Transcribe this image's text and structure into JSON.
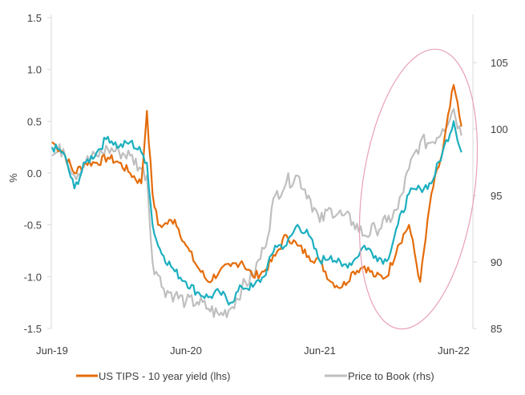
{
  "chart_data": {
    "type": "line",
    "title": "",
    "ylabel": "%",
    "ylim": [
      -1.5,
      1.5
    ],
    "y2lim": [
      85,
      108
    ],
    "yticks": [
      "1.5",
      "1.0",
      "0.5",
      "0.0",
      "-0.5",
      "-1.0",
      "-1.5"
    ],
    "y2ticks": [
      "105",
      "100",
      "95",
      "90",
      "85"
    ],
    "xticks": [
      "Jun-19",
      "Jun-20",
      "Jun-21",
      "Jun-22"
    ],
    "x_unit": "months since Jun-19",
    "x": [
      0,
      1,
      2,
      3,
      4,
      5,
      6,
      7,
      8,
      8.5,
      9,
      9.5,
      10,
      11,
      12,
      13,
      14,
      15,
      16,
      17,
      18,
      19,
      20,
      21,
      22,
      23,
      24,
      25,
      26,
      27,
      28,
      29,
      30,
      31,
      32,
      33,
      34,
      35,
      36,
      36.7
    ],
    "series": [
      {
        "name": "US TIPS - 10 year yield (lhs)",
        "axis": "left",
        "color": "#E46C0A",
        "values": [
          0.3,
          0.2,
          0.0,
          0.1,
          0.1,
          0.15,
          0.1,
          0.0,
          -0.1,
          0.6,
          -0.2,
          -0.5,
          -0.5,
          -0.45,
          -0.7,
          -0.9,
          -1.05,
          -0.95,
          -0.9,
          -0.85,
          -1.0,
          -0.95,
          -0.8,
          -0.6,
          -0.7,
          -0.8,
          -0.85,
          -1.05,
          -1.1,
          -0.95,
          -0.9,
          -1.0,
          -1.0,
          -0.7,
          -0.5,
          -1.05,
          -0.2,
          0.2,
          0.85,
          0.45
        ]
      },
      {
        "name": "",
        "axis": "left",
        "color": "#1BAFBF",
        "values": [
          0.25,
          0.2,
          -0.15,
          0.1,
          0.2,
          0.35,
          0.25,
          0.3,
          0.2,
          0.1,
          -0.5,
          -0.7,
          -0.8,
          -0.95,
          -1.05,
          -1.15,
          -1.2,
          -1.15,
          -1.25,
          -1.1,
          -1.1,
          -1.0,
          -0.7,
          -0.7,
          -0.5,
          -0.6,
          -0.85,
          -0.8,
          -0.9,
          -0.85,
          -0.7,
          -0.8,
          -0.85,
          -0.5,
          -0.2,
          -0.15,
          -0.1,
          0.2,
          0.5,
          0.2
        ]
      },
      {
        "name": "Price to Book (rhs)",
        "axis": "right",
        "color": "#BFBFBF",
        "values": [
          98,
          98.5,
          96.5,
          97.5,
          98,
          98.5,
          98.3,
          98,
          97,
          96.5,
          90,
          89,
          88,
          87.5,
          87,
          87,
          86.5,
          86,
          86.5,
          88,
          89,
          91,
          95,
          96,
          96.5,
          95,
          93,
          94,
          93.5,
          93,
          92,
          92.5,
          93,
          94,
          97,
          99,
          99,
          100,
          101.5,
          99.5
        ]
      }
    ],
    "legend": {
      "placement": "bottom",
      "entries": [
        "US TIPS - 10 year yield (lhs)",
        "Price to Book (rhs)"
      ]
    },
    "annotations": [
      {
        "type": "ellipse",
        "color": "#E8A0B4",
        "note": "highlight 2022 period"
      }
    ],
    "grid": false
  }
}
